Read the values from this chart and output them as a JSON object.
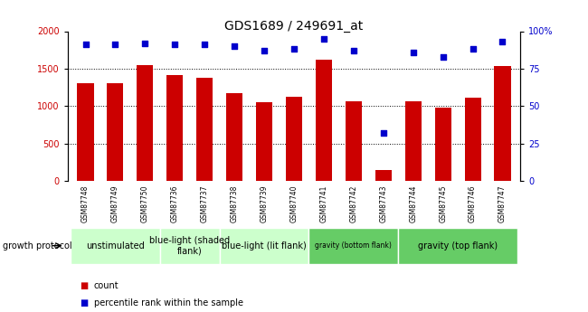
{
  "title": "GDS1689 / 249691_at",
  "samples": [
    "GSM87748",
    "GSM87749",
    "GSM87750",
    "GSM87736",
    "GSM87737",
    "GSM87738",
    "GSM87739",
    "GSM87740",
    "GSM87741",
    "GSM87742",
    "GSM87743",
    "GSM87744",
    "GSM87745",
    "GSM87746",
    "GSM87747"
  ],
  "counts": [
    1300,
    1305,
    1550,
    1420,
    1375,
    1170,
    1050,
    1120,
    1620,
    1060,
    150,
    1060,
    980,
    1110,
    1540
  ],
  "percentiles": [
    91,
    91,
    92,
    91,
    91,
    90,
    87,
    88,
    95,
    87,
    32,
    86,
    83,
    88,
    93
  ],
  "bar_color": "#cc0000",
  "dot_color": "#0000cc",
  "ylim_left": [
    0,
    2000
  ],
  "ylim_right": [
    0,
    100
  ],
  "yticks_left": [
    0,
    500,
    1000,
    1500,
    2000
  ],
  "yticks_right": [
    0,
    25,
    50,
    75,
    100
  ],
  "ytick_labels_right": [
    "0",
    "25",
    "50",
    "75",
    "100%"
  ],
  "group_configs": [
    {
      "label": "unstimulated",
      "start": 0,
      "end": 3,
      "color": "#ccffcc"
    },
    {
      "label": "blue-light (shaded\nflank)",
      "start": 3,
      "end": 5,
      "color": "#ccffcc"
    },
    {
      "label": "blue-light (lit flank)",
      "start": 5,
      "end": 8,
      "color": "#ccffcc"
    },
    {
      "label": "gravity (bottom flank)",
      "start": 8,
      "end": 11,
      "color": "#66cc66"
    },
    {
      "label": "gravity (top flank)",
      "start": 11,
      "end": 15,
      "color": "#66cc66"
    }
  ],
  "tick_label_area_color": "#cccccc",
  "bar_width": 0.55,
  "growth_protocol_label": "growth protocol",
  "legend_count_color": "#cc0000",
  "legend_pct_color": "#0000cc"
}
